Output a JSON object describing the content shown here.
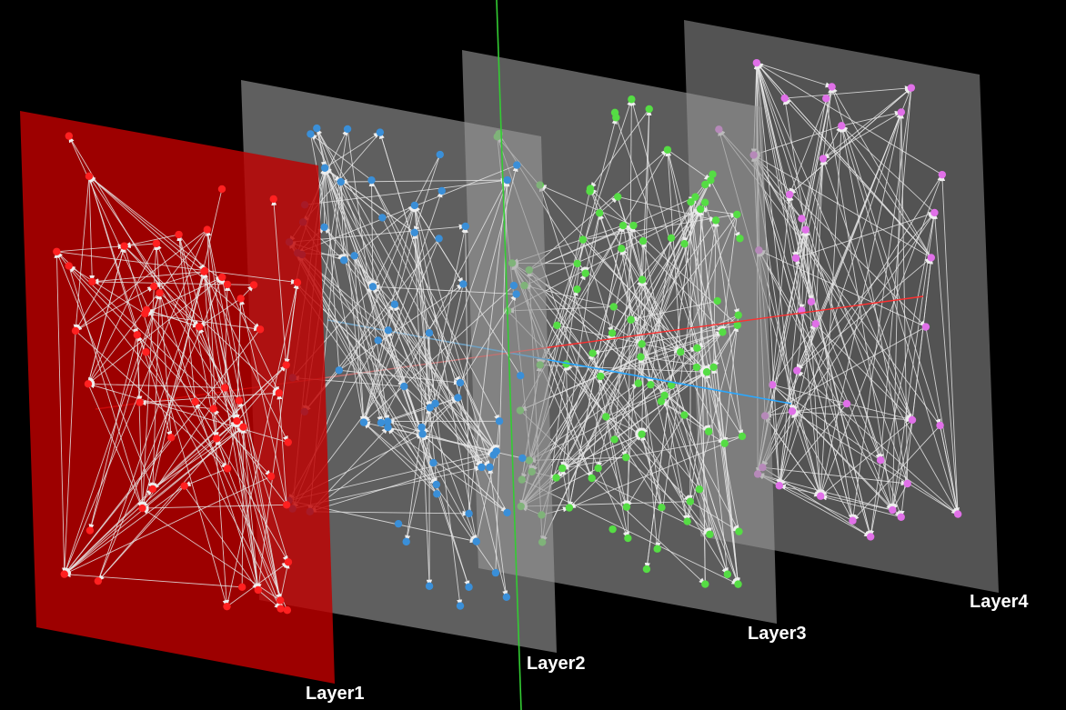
{
  "scene": {
    "background": "#000000",
    "edge_color": "#e6e6e6",
    "axis_colors": {
      "x": "#ff3030",
      "y": "#33cc33",
      "z": "#2aa8ff"
    }
  },
  "layers": [
    {
      "id": "layer1",
      "label": "Layer1",
      "plane_color": "#c00000",
      "node_color": "#ff2020",
      "node_count": 56,
      "edge_count": 130
    },
    {
      "id": "layer2",
      "label": "Layer2",
      "plane_color": "#9a9a9a",
      "node_color": "#3a8fd8",
      "node_count": 70,
      "edge_count": 150
    },
    {
      "id": "layer3",
      "label": "Layer3",
      "plane_color": "#9a9a9a",
      "node_color": "#55dd44",
      "node_count": 95,
      "edge_count": 200
    },
    {
      "id": "layer4",
      "label": "Layer4",
      "plane_color": "#8a8a8a",
      "node_color": "#e070e8",
      "node_count": 40,
      "edge_count": 140
    }
  ]
}
